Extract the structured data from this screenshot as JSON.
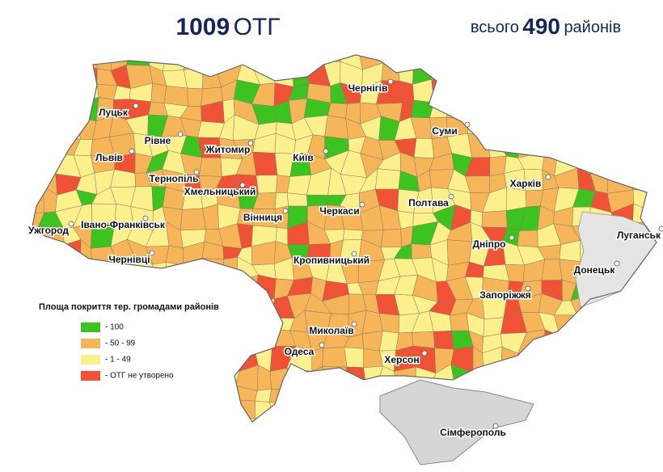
{
  "header": {
    "count": "1009",
    "count_label": "ОТГ",
    "total_prefix": "всього",
    "total": "490",
    "total_suffix": "районів"
  },
  "legend": {
    "title": "Площа покриття тер. громадами районів",
    "items": [
      {
        "label": "- 100",
        "color": "#3cc31f"
      },
      {
        "label": "- 50 - 99",
        "color": "#f7b55a"
      },
      {
        "label": "- 1 - 49",
        "color": "#fbf08c"
      },
      {
        "label": "- ОТГ не утворено",
        "color": "#f05236"
      }
    ]
  },
  "cities": [
    "Луцьк",
    "Рівне",
    "Житомир",
    "Київ",
    "Чернігів",
    "Суми",
    "Харків",
    "Львів",
    "Тернопіль",
    "Хмельницький",
    "Вінниця",
    "Черкаси",
    "Полтава",
    "Луганськ",
    "Ужгород",
    "Івано-Франківськ",
    "Чернівці",
    "Кропивницький",
    "Дніпро",
    "Донецьк",
    "Запоріжжя",
    "Миколаїв",
    "Одеса",
    "Херсон",
    "Сімферополь"
  ]
}
